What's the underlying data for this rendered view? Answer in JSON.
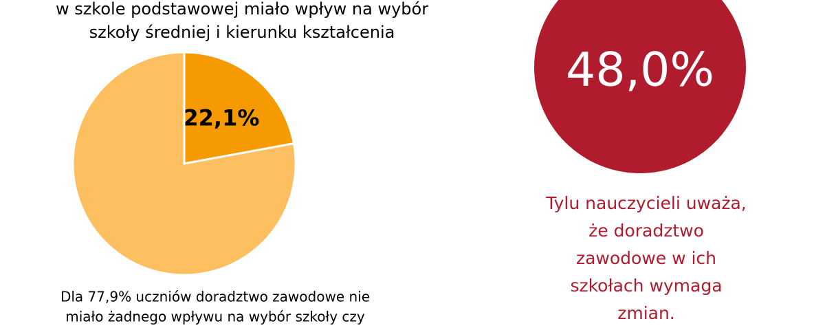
{
  "chart_data": [
    {
      "type": "pie",
      "title_lines": [
        "w szkole podstawowej miało wpływ na wybór",
        "szkoły średniej i kierunku kształcenia"
      ],
      "values": [
        22.1,
        77.9
      ],
      "value_labels": [
        "22,1%",
        null
      ],
      "colors": [
        "#f59a00",
        "#fdbf5f"
      ],
      "note_lines": [
        "Dla 77,9% uczniów doradztwo zawodowe nie",
        "miało żadnego wpływu na wybór szkoły czy"
      ]
    },
    {
      "type": "stat",
      "values": [
        48.0
      ],
      "value_labels": [
        "48,0%"
      ],
      "color": "#b01c2e",
      "caption_lines": [
        "Tylu nauczycieli uważa,",
        "że doradztwo",
        "zawodowe w ich",
        "szkołach wymaga",
        "zmian."
      ]
    }
  ]
}
